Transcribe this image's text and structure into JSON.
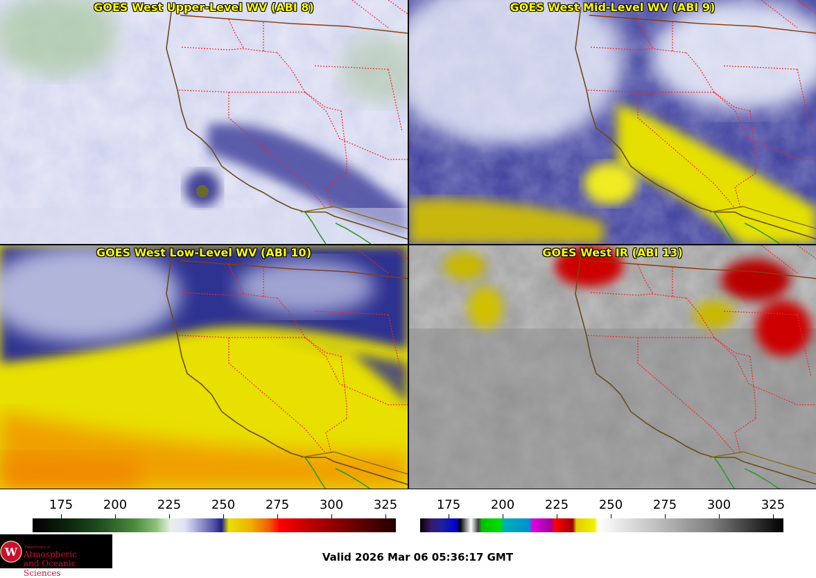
{
  "panels": [
    {
      "title": "GOES West Upper-Level WV (ABI 8)"
    },
    {
      "title": "GOES West Mid-Level WV (ABI 9)"
    },
    {
      "title": "GOES West Low-Level WV (ABI 10)"
    },
    {
      "title": "GOES West IR (ABI 13)"
    }
  ],
  "colorbar_wv": {
    "ticks": [
      "175",
      "200",
      "225",
      "250",
      "275",
      "300",
      "325"
    ]
  },
  "colorbar_ir": {
    "ticks": [
      "175",
      "200",
      "225",
      "250",
      "275",
      "300",
      "325"
    ]
  },
  "valid_time": "Valid 2026 Mar 06 05:36:17 GMT",
  "logo": {
    "small": "Department of",
    "line1": "Atmospheric",
    "line2": "and Oceanic Sciences"
  },
  "colors": {
    "title": "#ffff00",
    "state_borders": "#ff2020",
    "coast": "#6b4a1a",
    "mexico": "#2a9a2a"
  }
}
